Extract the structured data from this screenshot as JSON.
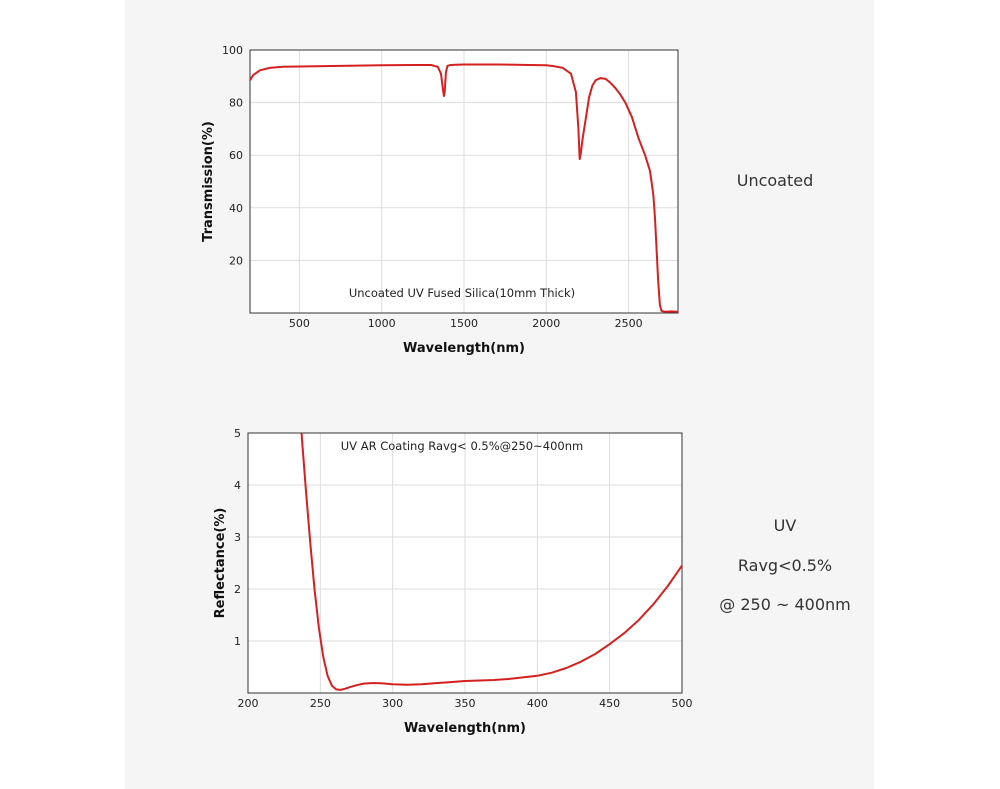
{
  "colors": {
    "curve": "#d62020",
    "grid": "#dddddd",
    "frame": "#333333"
  },
  "side_labels": {
    "top": "Uncoated",
    "bottom_lines": [
      "UV",
      "Ravg<0.5%",
      "@ 250 ~ 400nm"
    ]
  },
  "chart_data": [
    {
      "type": "line",
      "title": "",
      "annotation": "Uncoated UV Fused Silica(10mm Thick)",
      "xlabel": "Wavelength(nm)",
      "ylabel": "Transmission(%)",
      "xlim": [
        200,
        2800
      ],
      "ylim": [
        0,
        100
      ],
      "xticks": [
        500,
        1000,
        1500,
        2000,
        2500
      ],
      "yticks": [
        20,
        40,
        60,
        80,
        100
      ],
      "grid": true,
      "series": [
        {
          "x": [
            200,
            220,
            260,
            320,
            400,
            600,
            800,
            1000,
            1200,
            1300,
            1340,
            1360,
            1370,
            1378,
            1383,
            1390,
            1400,
            1420,
            1450,
            1500,
            1700,
            1900,
            2000,
            2050,
            2100,
            2150,
            2180,
            2195,
            2203,
            2210,
            2220,
            2240,
            2260,
            2280,
            2300,
            2330,
            2360,
            2390,
            2420,
            2450,
            2480,
            2520,
            2560,
            2600,
            2630,
            2650,
            2660,
            2670,
            2680,
            2690,
            2700,
            2720,
            2760,
            2800
          ],
          "y": [
            88.5,
            90.5,
            92.3,
            93.2,
            93.6,
            93.8,
            94.0,
            94.2,
            94.3,
            94.3,
            93.6,
            91.0,
            86.0,
            82.5,
            84.0,
            91.5,
            94.0,
            94.3,
            94.4,
            94.5,
            94.5,
            94.3,
            94.2,
            93.8,
            93.2,
            91.0,
            84.0,
            70.0,
            58.5,
            61.0,
            66.0,
            74.0,
            82.0,
            86.5,
            88.5,
            89.3,
            89.0,
            87.5,
            85.5,
            83.0,
            80.0,
            74.5,
            66.5,
            60.0,
            54.0,
            45.0,
            36.0,
            24.0,
            12.0,
            3.0,
            0.8,
            0.5,
            0.6,
            0.5
          ]
        }
      ]
    },
    {
      "type": "line",
      "title": "",
      "annotation": "UV AR Coating Ravg< 0.5%@250~400nm",
      "xlabel": "Wavelength(nm)",
      "ylabel": "Reflectance(%)",
      "xlim": [
        200,
        500
      ],
      "ylim": [
        0,
        5
      ],
      "xticks": [
        200,
        250,
        300,
        350,
        400,
        450,
        500
      ],
      "yticks": [
        1,
        2,
        3,
        4,
        5
      ],
      "grid": true,
      "series": [
        {
          "x": [
            237,
            240,
            243,
            246,
            249,
            252,
            255,
            258,
            261,
            264,
            267,
            270,
            275,
            280,
            285,
            290,
            295,
            300,
            310,
            320,
            330,
            340,
            350,
            360,
            370,
            380,
            390,
            400,
            410,
            420,
            430,
            440,
            450,
            460,
            470,
            480,
            490,
            500
          ],
          "y": [
            5.0,
            3.9,
            2.9,
            2.0,
            1.25,
            0.7,
            0.33,
            0.14,
            0.07,
            0.06,
            0.08,
            0.11,
            0.15,
            0.18,
            0.19,
            0.19,
            0.18,
            0.17,
            0.16,
            0.17,
            0.19,
            0.21,
            0.23,
            0.24,
            0.25,
            0.27,
            0.3,
            0.33,
            0.39,
            0.48,
            0.6,
            0.75,
            0.94,
            1.15,
            1.4,
            1.7,
            2.05,
            2.45
          ]
        }
      ]
    }
  ]
}
